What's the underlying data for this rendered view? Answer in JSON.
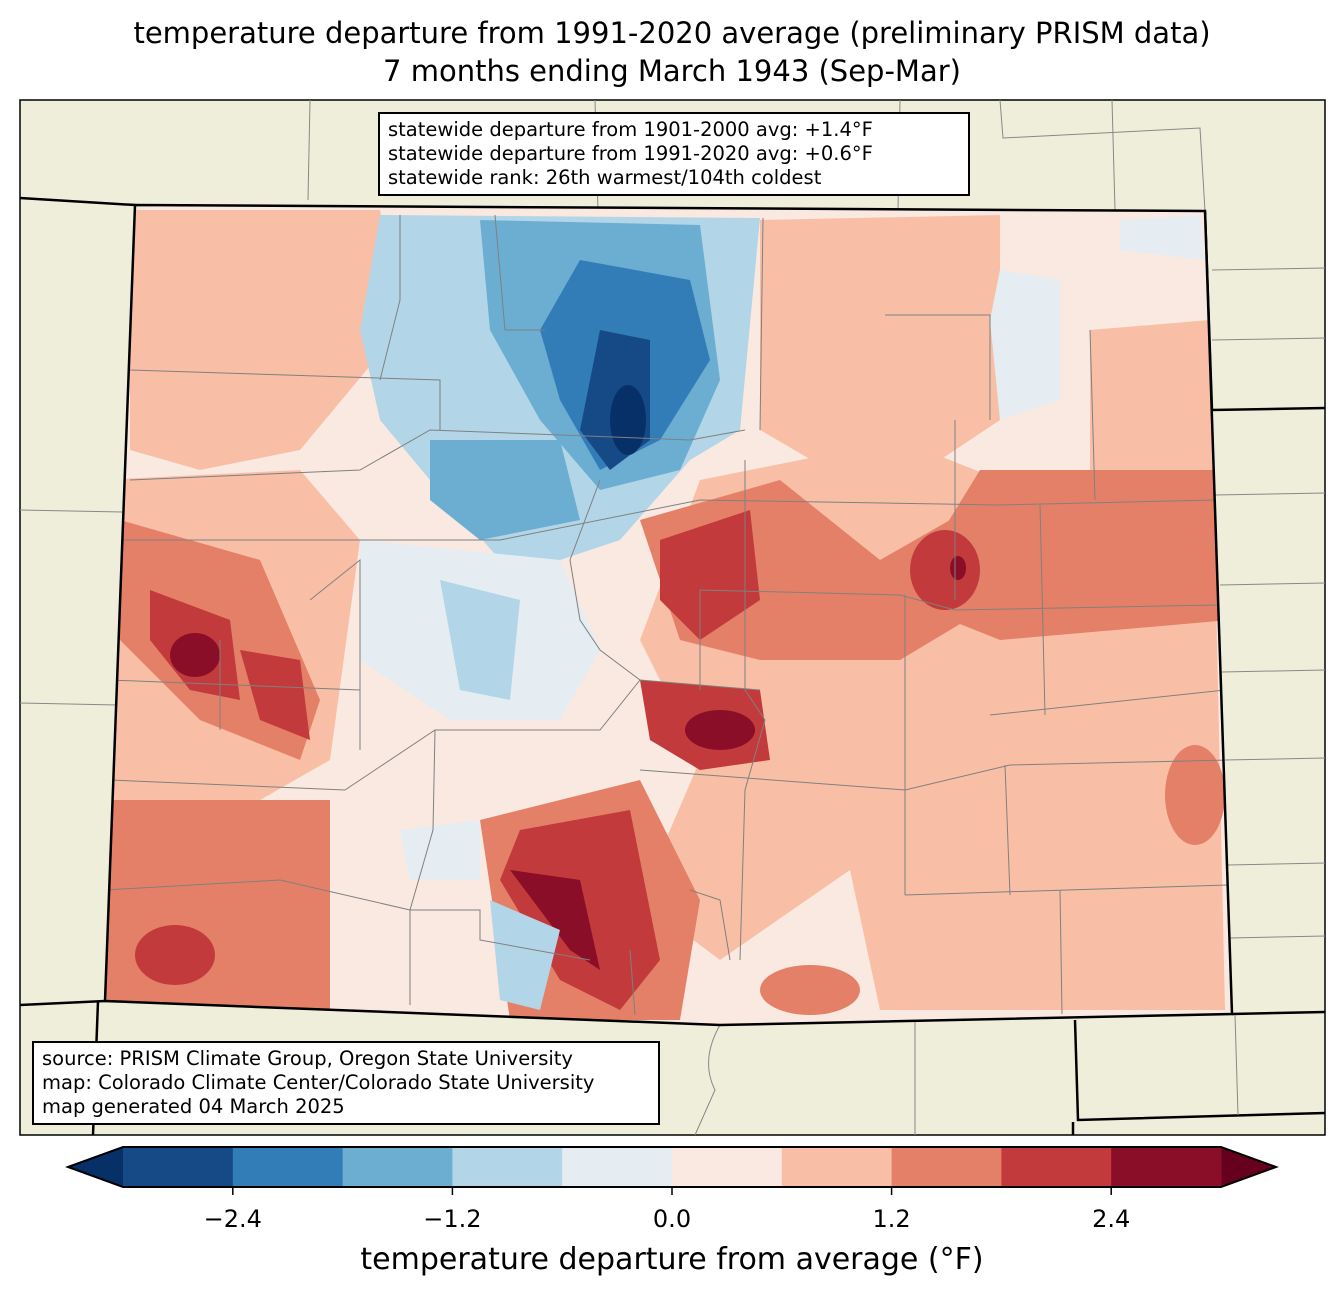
{
  "title": {
    "line1": "temperature departure from 1991-2020 average (preliminary PRISM data)",
    "line2": "7 months ending March 1943 (Sep-Mar)"
  },
  "stats": [
    "statewide departure from 1901-2000 avg: +1.4°F",
    "statewide departure from 1991-2020 avg: +0.6°F",
    "statewide rank: 26th warmest/104th coldest"
  ],
  "source": [
    "source: PRISM Climate Group, Oregon State University",
    "map: Colorado Climate Center/Colorado State University",
    "map generated 04 March 2025"
  ],
  "colorbar": {
    "label": "temperature departure from average (°F)",
    "levels": [
      -3.0,
      -2.4,
      -1.8,
      -1.2,
      -0.6,
      0.0,
      0.6,
      1.2,
      1.8,
      2.4,
      3.0
    ],
    "ticks": [
      "−2.4",
      "−1.2",
      "0.0",
      "1.2",
      "2.4"
    ],
    "colors": [
      "#154a86",
      "#327db8",
      "#6caed2",
      "#b2d5e7",
      "#e5edf3",
      "#f9e9e0",
      "#f9bfa6",
      "#e48067",
      "#c23a3c",
      "#8a0e27"
    ],
    "under": "#073068",
    "over": "#67001f"
  },
  "map_colors": {
    "land": "#efeedb",
    "border": "#000000",
    "county": "#808080"
  }
}
